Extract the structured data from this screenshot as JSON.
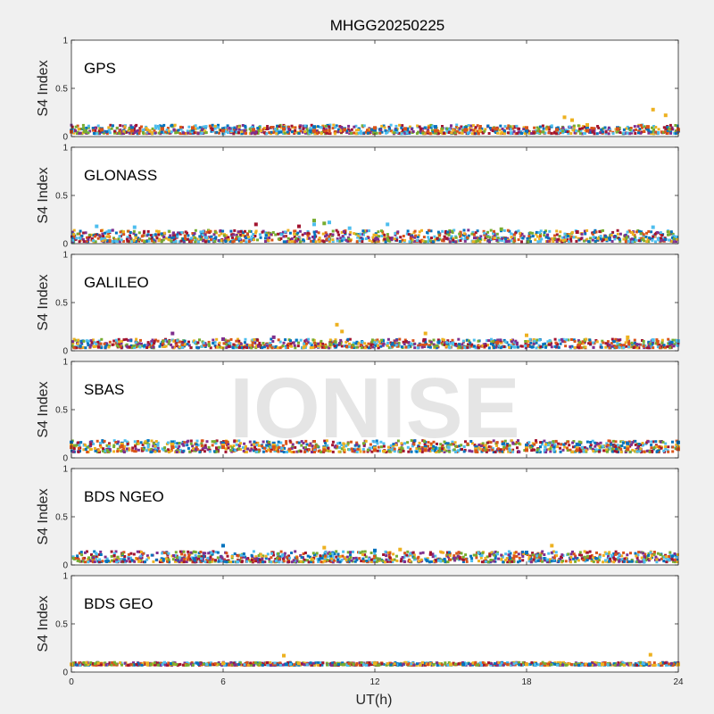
{
  "chart_data": {
    "type": "scatter",
    "title": "MHGG20250225",
    "xlabel": "UT(h)",
    "ylabel": "S4 Index",
    "xlim": [
      0,
      24
    ],
    "ylim": [
      0,
      1
    ],
    "x_ticks": [
      "0",
      "6",
      "12",
      "18",
      "24"
    ],
    "y_ticks": [
      "0",
      "0.5",
      "1"
    ],
    "grid": false,
    "watermark": "IONISE",
    "colors": [
      "#0072BD",
      "#D95319",
      "#EDB120",
      "#7E2F8E",
      "#77AC30",
      "#4DBEEE",
      "#A2142F"
    ],
    "panels": [
      {
        "name": "GPS",
        "baseline_range": [
          0.03,
          0.12
        ],
        "series": [
          {
            "color": "#0072BD",
            "x": [
              0.0,
              1.2,
              2.4,
              3.6,
              4.8,
              6.0,
              7.2,
              8.4,
              9.6,
              10.8,
              12.0,
              13.2,
              14.4,
              15.6,
              16.8,
              18.0,
              19.2,
              20.4,
              21.6,
              22.8,
              24.0
            ],
            "y": [
              0.06,
              0.08,
              0.09,
              0.1,
              0.07,
              0.08,
              0.07,
              0.09,
              0.1,
              0.08,
              0.07,
              0.08,
              0.1,
              0.09,
              0.07,
              0.06,
              0.08,
              0.1,
              0.09,
              0.08,
              0.06
            ]
          },
          {
            "color": "#D95319",
            "x": [
              0.0,
              1.2,
              2.4,
              3.6,
              4.8,
              6.0,
              7.2,
              8.4,
              9.6,
              10.8,
              12.0,
              13.2,
              14.4,
              15.6,
              16.8,
              18.0,
              19.2,
              20.4,
              21.6,
              22.8,
              24.0
            ],
            "y": [
              0.05,
              0.07,
              0.06,
              0.08,
              0.09,
              0.06,
              0.07,
              0.08,
              0.06,
              0.07,
              0.09,
              0.08,
              0.06,
              0.07,
              0.08,
              0.09,
              0.07,
              0.06,
              0.08,
              0.1,
              0.07
            ]
          },
          {
            "color": "#EDB120",
            "x": [
              19.5,
              19.8,
              20.4,
              23.0,
              23.5
            ],
            "y": [
              0.2,
              0.17,
              0.12,
              0.28,
              0.22
            ]
          }
        ]
      },
      {
        "name": "GLONASS",
        "baseline_range": [
          0.02,
          0.14
        ],
        "series": [
          {
            "color": "#4DBEEE",
            "x": [
              1.0,
              1.5,
              2.5,
              9.6,
              10.2,
              11.0,
              12.5,
              23.0
            ],
            "y": [
              0.18,
              0.13,
              0.17,
              0.2,
              0.22,
              0.16,
              0.2,
              0.17
            ]
          },
          {
            "color": "#77AC30",
            "x": [
              9.6,
              10.0,
              17.0
            ],
            "y": [
              0.24,
              0.21,
              0.15
            ]
          },
          {
            "color": "#A2142F",
            "x": [
              7.3,
              9.0,
              20.0
            ],
            "y": [
              0.2,
              0.18,
              0.12
            ]
          }
        ]
      },
      {
        "name": "GALILEO",
        "baseline_range": [
          0.03,
          0.12
        ],
        "series": [
          {
            "color": "#EDB120",
            "x": [
              10.5,
              10.7,
              14.0,
              18.0,
              22.0
            ],
            "y": [
              0.27,
              0.2,
              0.18,
              0.16,
              0.14
            ]
          },
          {
            "color": "#7E2F8E",
            "x": [
              4.0,
              6.0,
              8.0
            ],
            "y": [
              0.18,
              0.12,
              0.14
            ]
          },
          {
            "color": "#4DBEEE",
            "x": [
              23.0,
              24.0
            ],
            "y": [
              0.11,
              0.1
            ]
          }
        ]
      },
      {
        "name": "SBAS",
        "baseline_range": [
          0.06,
          0.18
        ],
        "series": [
          {
            "color": "#0072BD",
            "x": [
              0.0,
              2.0,
              4.0,
              6.0,
              8.0,
              10.0,
              12.0,
              14.0,
              16.0,
              18.0,
              20.0,
              22.0,
              24.0
            ],
            "y": [
              0.16,
              0.15,
              0.16,
              0.15,
              0.15,
              0.11,
              0.11,
              0.11,
              0.11,
              0.13,
              0.14,
              0.15,
              0.16
            ]
          },
          {
            "color": "#EDB120",
            "x": [
              0.0,
              2.0,
              4.0,
              6.0,
              8.0,
              10.0,
              12.0,
              14.0,
              16.0,
              18.0,
              20.0,
              22.0,
              24.0
            ],
            "y": [
              0.13,
              0.14,
              0.14,
              0.13,
              0.13,
              0.1,
              0.1,
              0.09,
              0.09,
              0.1,
              0.1,
              0.11,
              0.11
            ]
          },
          {
            "color": "#D95319",
            "x": [
              0.0,
              2.0,
              4.0,
              6.0,
              8.0,
              10.0,
              12.0,
              14.0,
              16.0,
              18.0,
              20.0,
              22.0,
              24.0
            ],
            "y": [
              0.11,
              0.12,
              0.11,
              0.11,
              0.11,
              0.08,
              0.08,
              0.08,
              0.07,
              0.08,
              0.08,
              0.09,
              0.09
            ]
          }
        ]
      },
      {
        "name": "BDS NGEO",
        "baseline_range": [
          0.03,
          0.14
        ],
        "series": [
          {
            "color": "#0072BD",
            "x": [
              6.0,
              12.0,
              18.0
            ],
            "y": [
              0.2,
              0.15,
              0.13
            ]
          },
          {
            "color": "#EDB120",
            "x": [
              10.0,
              13.0,
              19.0
            ],
            "y": [
              0.18,
              0.16,
              0.2
            ]
          }
        ]
      },
      {
        "name": "BDS GEO",
        "baseline_range": [
          0.07,
          0.1
        ],
        "series": [
          {
            "color": "#EDB120",
            "x": [
              0.0,
              3.0,
              6.0,
              9.0,
              12.0,
              15.0,
              18.0,
              21.0,
              24.0
            ],
            "y": [
              0.08,
              0.09,
              0.09,
              0.09,
              0.09,
              0.08,
              0.08,
              0.08,
              0.08
            ]
          },
          {
            "color": "#0072BD",
            "x": [
              8.5,
              13.0,
              15.5,
              20.5
            ],
            "y": [
              0.08,
              0.08,
              0.08,
              0.08
            ]
          },
          {
            "color": "#EDB120",
            "x": [
              8.4,
              22.9
            ],
            "y": [
              0.17,
              0.18
            ]
          }
        ]
      }
    ]
  }
}
